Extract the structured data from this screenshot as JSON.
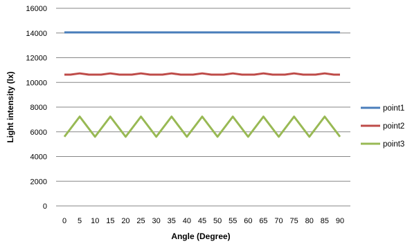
{
  "chart_data": {
    "type": "line",
    "title": "",
    "xlabel": "Angle (Degree)",
    "ylabel": "Light intensity (lx)",
    "xlim": [
      0,
      90
    ],
    "ylim": [
      0,
      16000
    ],
    "y_ticks": [
      0,
      2000,
      4000,
      6000,
      8000,
      10000,
      12000,
      14000,
      16000
    ],
    "x_ticks": [
      0,
      5,
      10,
      15,
      20,
      25,
      30,
      35,
      40,
      45,
      50,
      55,
      60,
      65,
      70,
      75,
      80,
      85,
      90
    ],
    "grid": "horizontal",
    "legend_position": "right",
    "series": [
      {
        "name": "point1",
        "color": "#4a7ebb",
        "x": [
          0,
          90
        ],
        "y": [
          14050,
          14050
        ]
      },
      {
        "name": "point2",
        "color": "#be4b48",
        "x": [
          0,
          2,
          5,
          8,
          10,
          12,
          15,
          18,
          20,
          22,
          25,
          28,
          30,
          32,
          35,
          38,
          40,
          42,
          45,
          48,
          50,
          52,
          55,
          58,
          60,
          62,
          65,
          68,
          70,
          72,
          75,
          78,
          80,
          82,
          85,
          88,
          90
        ],
        "y": [
          10630,
          10630,
          10730,
          10630,
          10630,
          10630,
          10730,
          10630,
          10630,
          10630,
          10730,
          10630,
          10630,
          10630,
          10730,
          10630,
          10630,
          10630,
          10730,
          10630,
          10630,
          10630,
          10730,
          10630,
          10630,
          10630,
          10730,
          10630,
          10630,
          10630,
          10730,
          10630,
          10630,
          10630,
          10730,
          10630,
          10630
        ]
      },
      {
        "name": "point3",
        "color": "#98b954",
        "x": [
          0,
          5,
          10,
          15,
          20,
          25,
          30,
          35,
          40,
          45,
          50,
          55,
          60,
          65,
          70,
          75,
          80,
          85,
          90
        ],
        "y": [
          5600,
          7230,
          5600,
          7230,
          5600,
          7230,
          5600,
          7230,
          5600,
          7230,
          5600,
          7230,
          5600,
          7230,
          5600,
          7230,
          5600,
          7230,
          5600
        ]
      }
    ]
  }
}
